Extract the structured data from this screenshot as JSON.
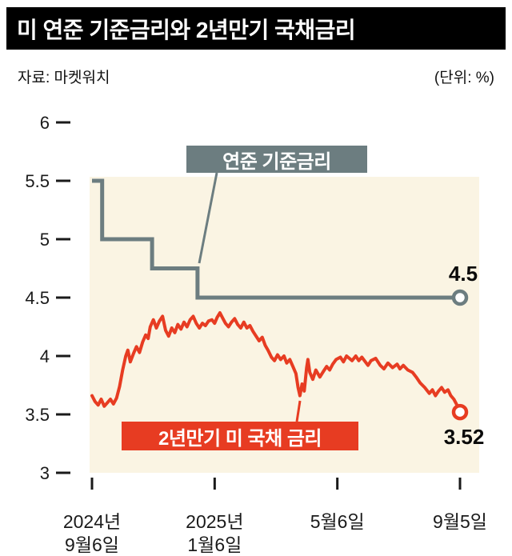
{
  "title_bar": {
    "title": "미 연준 기준금리와 2년만기 국채금리"
  },
  "meta": {
    "source": "자료: 마켓워치",
    "unit_label": "(단위: %)"
  },
  "colors": {
    "plot_bg": "#faf4e3",
    "axis": "#1a1a1a",
    "fed": "#6c7d80",
    "treasury": "#e73c22",
    "title_bar_bg": "#000000",
    "marker_fill": "#ffffff"
  },
  "chart_data": {
    "type": "line",
    "title": "미 연준 기준금리와 2년만기 국채금리",
    "unit": "%",
    "x_unit": "months since 2024-09-06",
    "xlim": [
      0,
      12
    ],
    "ylim": [
      3,
      6
    ],
    "grid": false,
    "yticks": [
      6,
      5.5,
      5,
      4.5,
      4,
      3.5,
      3
    ],
    "xticks": [
      {
        "t": 0,
        "lines": [
          "2024년",
          "9월6일"
        ]
      },
      {
        "t": 4,
        "lines": [
          "2025년",
          "1월6일"
        ]
      },
      {
        "t": 8,
        "lines": [
          "5월6일"
        ]
      },
      {
        "t": 12,
        "lines": [
          "9월5일"
        ]
      }
    ],
    "series": [
      {
        "name": "연준 기준금리",
        "color": "#6c7d80",
        "end_label": "4.5",
        "end_value": 4.5,
        "points": [
          [
            0,
            5.5
          ],
          [
            0.33,
            5.5
          ],
          [
            0.33,
            5.0
          ],
          [
            1.96,
            5.0
          ],
          [
            1.96,
            4.75
          ],
          [
            3.44,
            4.75
          ],
          [
            3.44,
            4.5
          ],
          [
            12,
            4.5
          ]
        ]
      },
      {
        "name": "2년만기 미 국채 금리",
        "color": "#e73c22",
        "end_label": "3.52",
        "end_value": 3.52,
        "points": [
          [
            0.0,
            3.66
          ],
          [
            0.1,
            3.61
          ],
          [
            0.2,
            3.58
          ],
          [
            0.3,
            3.63
          ],
          [
            0.4,
            3.57
          ],
          [
            0.5,
            3.6
          ],
          [
            0.6,
            3.63
          ],
          [
            0.7,
            3.59
          ],
          [
            0.8,
            3.64
          ],
          [
            0.9,
            3.74
          ],
          [
            1.0,
            3.88
          ],
          [
            1.1,
            4.0
          ],
          [
            1.17,
            4.05
          ],
          [
            1.25,
            3.95
          ],
          [
            1.35,
            4.02
          ],
          [
            1.45,
            4.08
          ],
          [
            1.55,
            4.03
          ],
          [
            1.65,
            4.12
          ],
          [
            1.75,
            4.18
          ],
          [
            1.83,
            4.15
          ],
          [
            1.9,
            4.25
          ],
          [
            2.0,
            4.31
          ],
          [
            2.1,
            4.24
          ],
          [
            2.2,
            4.3
          ],
          [
            2.3,
            4.34
          ],
          [
            2.4,
            4.22
          ],
          [
            2.5,
            4.17
          ],
          [
            2.6,
            4.24
          ],
          [
            2.7,
            4.2
          ],
          [
            2.8,
            4.27
          ],
          [
            2.9,
            4.23
          ],
          [
            3.0,
            4.29
          ],
          [
            3.1,
            4.25
          ],
          [
            3.2,
            4.31
          ],
          [
            3.3,
            4.34
          ],
          [
            3.4,
            4.28
          ],
          [
            3.5,
            4.24
          ],
          [
            3.6,
            4.28
          ],
          [
            3.7,
            4.26
          ],
          [
            3.8,
            4.3
          ],
          [
            3.91,
            4.31
          ],
          [
            4.0,
            4.28
          ],
          [
            4.08,
            4.33
          ],
          [
            4.17,
            4.37
          ],
          [
            4.25,
            4.33
          ],
          [
            4.35,
            4.28
          ],
          [
            4.45,
            4.25
          ],
          [
            4.55,
            4.29
          ],
          [
            4.65,
            4.32
          ],
          [
            4.75,
            4.27
          ],
          [
            4.85,
            4.24
          ],
          [
            4.95,
            4.29
          ],
          [
            5.05,
            4.24
          ],
          [
            5.15,
            4.26
          ],
          [
            5.25,
            4.21
          ],
          [
            5.35,
            4.17
          ],
          [
            5.45,
            4.13
          ],
          [
            5.55,
            4.16
          ],
          [
            5.65,
            4.09
          ],
          [
            5.74,
            4.05
          ],
          [
            5.85,
            3.99
          ],
          [
            5.95,
            3.96
          ],
          [
            6.05,
            4.01
          ],
          [
            6.15,
            3.97
          ],
          [
            6.26,
            4.0
          ],
          [
            6.35,
            3.94
          ],
          [
            6.45,
            3.97
          ],
          [
            6.55,
            3.91
          ],
          [
            6.65,
            3.85
          ],
          [
            6.72,
            3.73
          ],
          [
            6.78,
            3.66
          ],
          [
            6.85,
            3.76
          ],
          [
            6.92,
            3.7
          ],
          [
            7.0,
            3.9
          ],
          [
            7.04,
            3.97
          ],
          [
            7.1,
            3.86
          ],
          [
            7.2,
            3.8
          ],
          [
            7.3,
            3.88
          ],
          [
            7.43,
            3.82
          ],
          [
            7.55,
            3.87
          ],
          [
            7.65,
            3.91
          ],
          [
            7.75,
            3.88
          ],
          [
            7.85,
            3.93
          ],
          [
            7.96,
            3.97
          ],
          [
            8.1,
            3.99
          ],
          [
            8.2,
            3.95
          ],
          [
            8.3,
            4.0
          ],
          [
            8.48,
            3.96
          ],
          [
            8.6,
            4.0
          ],
          [
            8.7,
            3.96
          ],
          [
            8.8,
            3.99
          ],
          [
            9.0,
            3.92
          ],
          [
            9.1,
            3.96
          ],
          [
            9.25,
            3.98
          ],
          [
            9.4,
            3.92
          ],
          [
            9.52,
            3.89
          ],
          [
            9.65,
            3.94
          ],
          [
            9.8,
            3.9
          ],
          [
            9.95,
            3.93
          ],
          [
            10.04,
            3.89
          ],
          [
            10.15,
            3.92
          ],
          [
            10.3,
            3.88
          ],
          [
            10.45,
            3.86
          ],
          [
            10.57,
            3.82
          ],
          [
            10.7,
            3.77
          ],
          [
            10.85,
            3.73
          ],
          [
            11.0,
            3.68
          ],
          [
            11.1,
            3.71
          ],
          [
            11.2,
            3.66
          ],
          [
            11.3,
            3.7
          ],
          [
            11.4,
            3.73
          ],
          [
            11.5,
            3.69
          ],
          [
            11.61,
            3.71
          ],
          [
            11.7,
            3.66
          ],
          [
            11.8,
            3.63
          ],
          [
            11.9,
            3.58
          ],
          [
            12.0,
            3.52
          ]
        ]
      }
    ],
    "annotations": [
      {
        "target": "fed",
        "text": "연준 기준금리"
      },
      {
        "target": "treasury",
        "text": "2년만기 미 국채 금리"
      }
    ],
    "legend_position": "inline-callouts"
  }
}
